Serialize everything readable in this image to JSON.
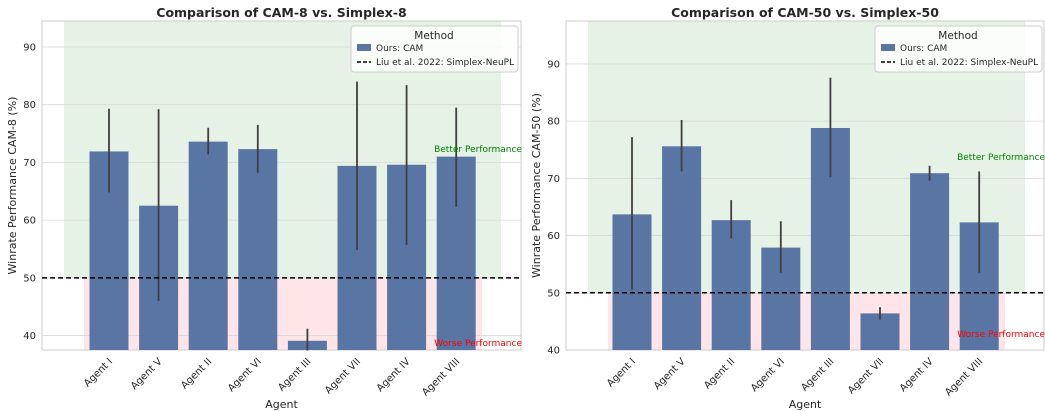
{
  "chart_data": [
    {
      "type": "bar",
      "title": "Comparison of CAM-8 vs. Simplex-8",
      "xlabel": "Agent",
      "ylabel": "Winrate Performance CAM-8 (%)",
      "ylim": [
        37.5,
        94.5
      ],
      "yticks": [
        40,
        50,
        60,
        70,
        80,
        90
      ],
      "categories": [
        "Agent I",
        "Agent V",
        "Agent II",
        "Agent VI",
        "Agent III",
        "Agent VII",
        "Agent IV",
        "Agent VIII"
      ],
      "series": [
        {
          "name": "Ours: CAM",
          "values": [
            71.9,
            62.5,
            73.6,
            72.3,
            39.1,
            69.4,
            69.6,
            71.0
          ],
          "err_low": [
            64.8,
            46.0,
            71.4,
            68.2,
            37.4,
            54.8,
            55.7,
            62.3
          ],
          "err_high": [
            79.3,
            79.2,
            76.0,
            76.5,
            41.2,
            84.0,
            83.4,
            79.5
          ],
          "color": "#5875a4"
        }
      ],
      "baseline": {
        "name": "Liu et al. 2022: Simplex-NeuPL",
        "value": 50
      },
      "regions": {
        "better": {
          "label": "Better Performance",
          "color": "#e5f2e5",
          "text_color": "#008000"
        },
        "worse": {
          "label": "Worse Performance",
          "color": "#ffe4e8",
          "text_color": "#ff0000"
        }
      },
      "legend": {
        "title": "Method",
        "placement": "top-right"
      },
      "grid": true
    },
    {
      "type": "bar",
      "title": "Comparison of CAM-50 vs. Simplex-50",
      "xlabel": "Agent",
      "ylabel": "Winrate Performance CAM-50 (%)",
      "ylim": [
        40,
        97.5
      ],
      "yticks": [
        40,
        50,
        60,
        70,
        80,
        90
      ],
      "categories": [
        "Agent I",
        "Agent V",
        "Agent II",
        "Agent VI",
        "Agent III",
        "Agent VII",
        "Agent IV",
        "Agent VIII"
      ],
      "series": [
        {
          "name": "Ours: CAM",
          "values": [
            63.7,
            75.6,
            62.7,
            57.9,
            78.8,
            46.4,
            70.9,
            62.3
          ],
          "err_low": [
            50.5,
            71.2,
            59.5,
            53.5,
            70.2,
            45.3,
            69.6,
            53.5
          ],
          "err_high": [
            77.2,
            80.2,
            66.2,
            62.5,
            87.6,
            47.5,
            72.2,
            71.2
          ],
          "color": "#5875a4"
        }
      ],
      "baseline": {
        "name": "Liu et al. 2022: Simplex-NeuPL",
        "value": 50
      },
      "regions": {
        "better": {
          "label": "Better Performance",
          "color": "#e5f2e5",
          "text_color": "#008000"
        },
        "worse": {
          "label": "Worse Performance",
          "color": "#ffe4e8",
          "text_color": "#ff0000"
        }
      },
      "legend": {
        "title": "Method",
        "placement": "top-right"
      },
      "grid": true
    }
  ]
}
